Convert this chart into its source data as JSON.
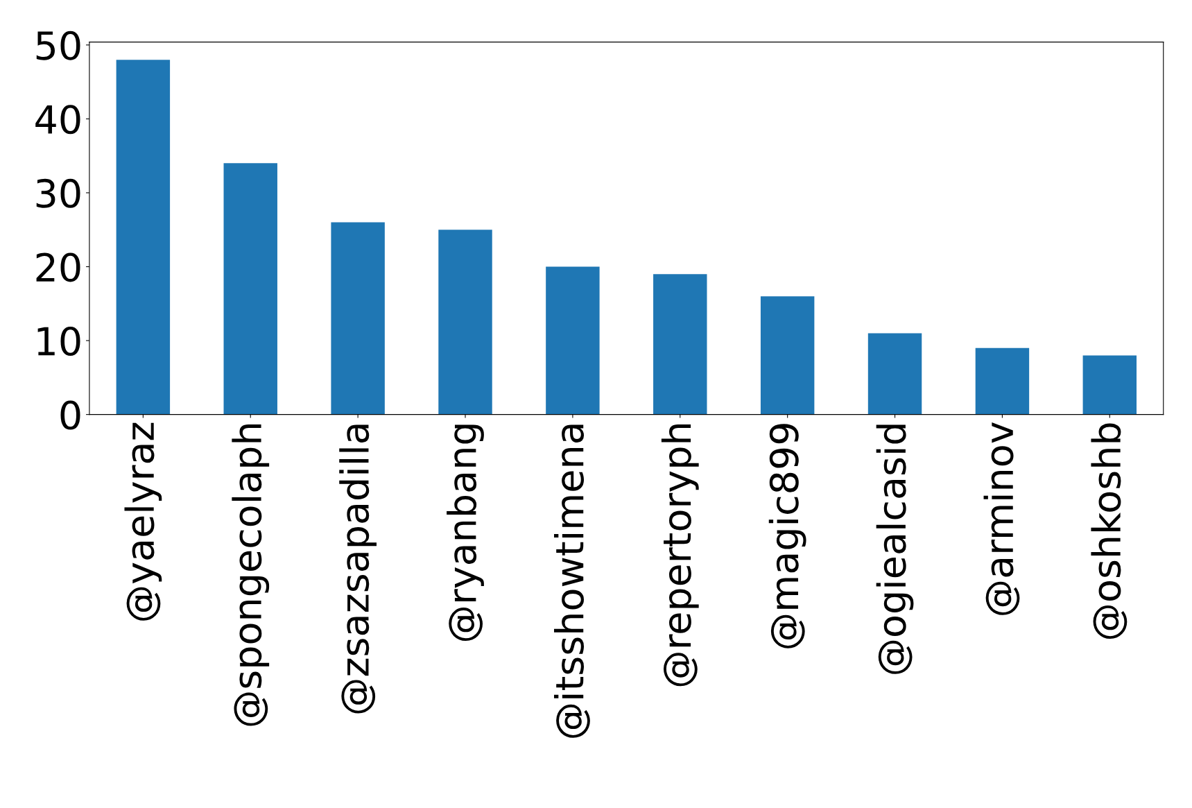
{
  "chart_data": {
    "type": "bar",
    "categories": [
      "@yaelyraz",
      "@spongecolaph",
      "@zsazsapadilla",
      "@ryanbang",
      "@itsshowtimena",
      "@repertoryph",
      "@magic899",
      "@ogiealcasid",
      "@arminov",
      "@oshkoshb"
    ],
    "values": [
      48,
      34,
      26,
      25,
      20,
      19,
      16,
      11,
      9,
      8
    ],
    "color": "#1f77b4",
    "ylim": [
      0,
      50.4
    ],
    "yticks": [
      0,
      10,
      20,
      30,
      40,
      50
    ],
    "grid": false,
    "legend": false
  }
}
